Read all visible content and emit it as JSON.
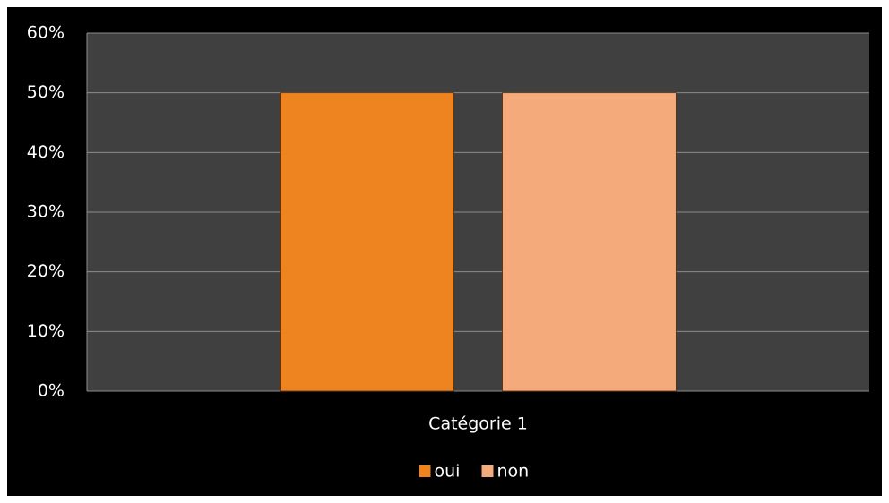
{
  "chart_data": {
    "type": "bar",
    "categories": [
      "Catégorie 1"
    ],
    "series": [
      {
        "name": "oui",
        "color": "#ee8420",
        "values": [
          50
        ]
      },
      {
        "name": "non",
        "color": "#f5aa7c",
        "values": [
          50
        ]
      }
    ],
    "ylim": [
      0,
      60
    ],
    "yticks": [
      {
        "value": 0,
        "label": "0%"
      },
      {
        "value": 10,
        "label": "10%"
      },
      {
        "value": 20,
        "label": "20%"
      },
      {
        "value": 30,
        "label": "30%"
      },
      {
        "value": 40,
        "label": "40%"
      },
      {
        "value": 50,
        "label": "50%"
      },
      {
        "value": 60,
        "label": "60%"
      }
    ],
    "grid": true,
    "legend": "bottom"
  }
}
